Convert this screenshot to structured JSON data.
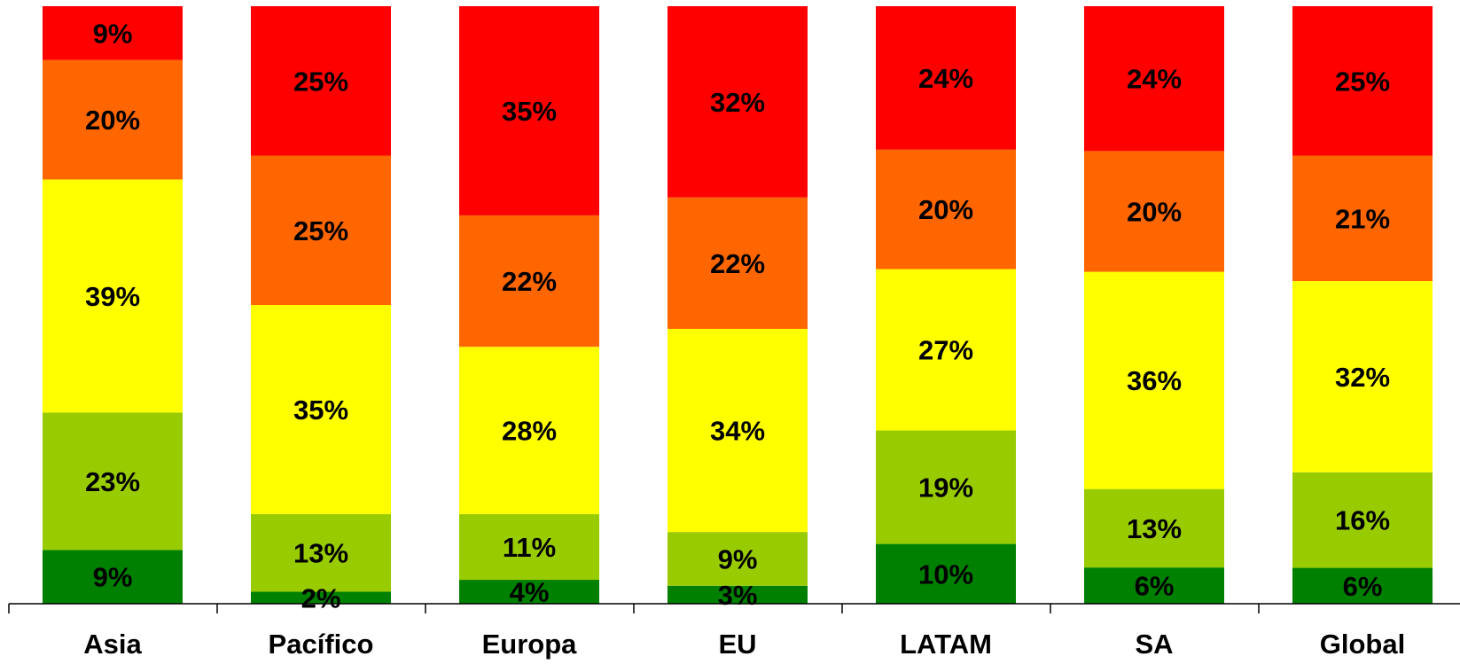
{
  "chart_data": {
    "type": "bar",
    "stacked": true,
    "normalized": true,
    "categories": [
      "Asia",
      "Pacífico",
      "Europa",
      "EU",
      "LATAM",
      "SA",
      "Global"
    ],
    "series": [
      {
        "color": "#008000",
        "values": [
          9,
          2,
          4,
          3,
          10,
          6,
          6
        ],
        "labels": [
          "9%",
          "2%",
          "4%",
          "3%",
          "10%",
          "6%",
          "6%"
        ]
      },
      {
        "color": "#99CC00",
        "values": [
          23,
          13,
          11,
          9,
          19,
          13,
          16
        ],
        "labels": [
          "23%",
          "13%",
          "11%",
          "9%",
          "19%",
          "13%",
          "16%"
        ]
      },
      {
        "color": "#FFFF00",
        "values": [
          39,
          35,
          28,
          34,
          27,
          36,
          32
        ],
        "labels": [
          "39%",
          "35%",
          "28%",
          "34%",
          "27%",
          "36%",
          "32%"
        ]
      },
      {
        "color": "#FF6600",
        "values": [
          20,
          25,
          22,
          22,
          20,
          20,
          21
        ],
        "labels": [
          "20%",
          "25%",
          "22%",
          "22%",
          "20%",
          "20%",
          "21%"
        ]
      },
      {
        "color": "#FF0000",
        "values": [
          9,
          25,
          35,
          32,
          24,
          24,
          25
        ],
        "labels": [
          "9%",
          "25%",
          "35%",
          "32%",
          "24%",
          "24%",
          "25%"
        ]
      }
    ],
    "ylim": [
      0,
      100
    ],
    "grid": false,
    "legend": "none"
  }
}
